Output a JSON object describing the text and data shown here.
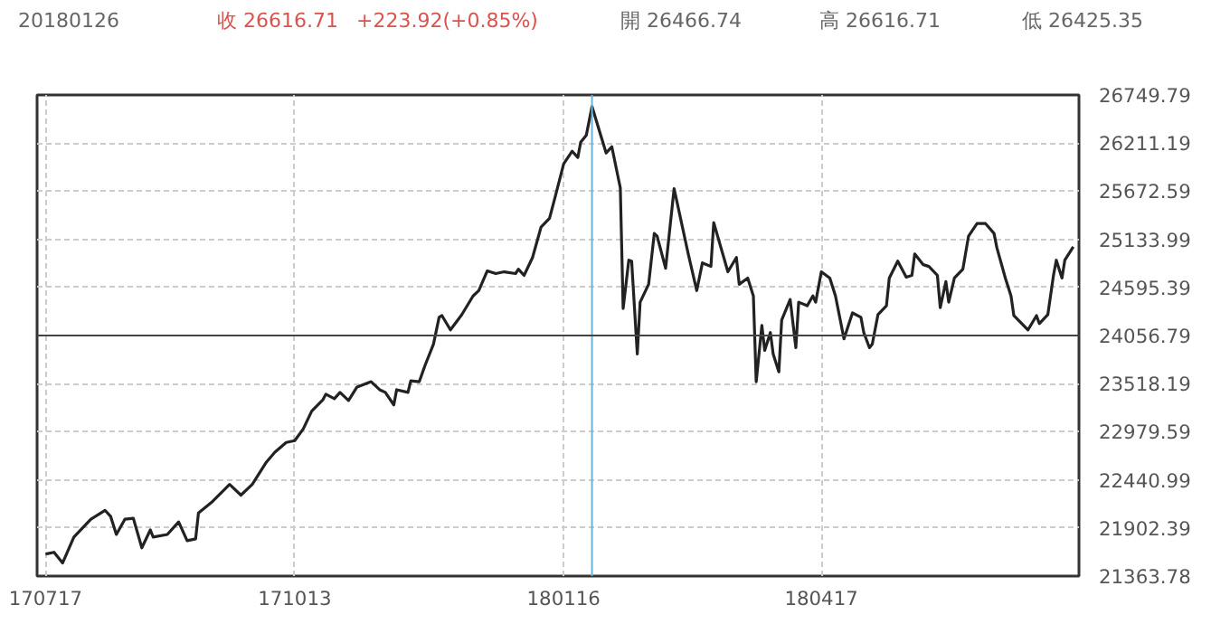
{
  "chart_data": {
    "type": "line",
    "annotations": [
      "20180126",
      "收 26616.71",
      "+223.92(+0.85%)",
      "開 26466.74",
      "高 26616.71",
      "低 26425.35"
    ],
    "series": [
      {
        "color": "#222222",
        "x": [
          "2017-07-17",
          "2017-07-20",
          "2017-07-23",
          "2017-07-27",
          "2017-08-02",
          "2017-08-07",
          "2017-08-09",
          "2017-08-11",
          "2017-08-14",
          "2017-08-17",
          "2017-08-20",
          "2017-08-23",
          "2017-08-24",
          "2017-08-29",
          "2017-09-02",
          "2017-09-05",
          "2017-09-08",
          "2017-09-09",
          "2017-09-14",
          "2017-09-20",
          "2017-09-24",
          "2017-09-28",
          "2017-10-03",
          "2017-10-06",
          "2017-10-10",
          "2017-10-13",
          "2017-10-16",
          "2017-10-19",
          "2017-10-23",
          "2017-10-24",
          "2017-10-27",
          "2017-10-29",
          "2017-11-01",
          "2017-11-04",
          "2017-11-09",
          "2017-11-12",
          "2017-11-14",
          "2017-11-17",
          "2017-11-18",
          "2017-11-22",
          "2017-11-23",
          "2017-11-26",
          "2017-11-28",
          "2017-12-01",
          "2017-12-03",
          "2017-12-04",
          "2017-12-07",
          "2017-12-11",
          "2017-12-15",
          "2017-12-17",
          "2017-12-20",
          "2017-12-23",
          "2017-12-26",
          "2017-12-30",
          "2017-12-31",
          "2018-01-02",
          "2018-01-05",
          "2018-01-08",
          "2018-01-11",
          "2018-01-13",
          "2018-01-16",
          "2018-01-19",
          "2018-01-21",
          "2018-01-22",
          "2018-01-24",
          "2018-01-26",
          "2018-01-31",
          "2018-02-02",
          "2018-02-05",
          "2018-02-06",
          "2018-02-08",
          "2018-02-09",
          "2018-02-11",
          "2018-02-12",
          "2018-02-15",
          "2018-02-17",
          "2018-02-18",
          "2018-02-21",
          "2018-02-24",
          "2018-03-01",
          "2018-03-04",
          "2018-03-06",
          "2018-03-09",
          "2018-03-10",
          "2018-03-15",
          "2018-03-18",
          "2018-03-19",
          "2018-03-22",
          "2018-03-24",
          "2018-03-25",
          "2018-03-27",
          "2018-03-28",
          "2018-03-30",
          "2018-03-31",
          "2018-04-02",
          "2018-04-03",
          "2018-04-06",
          "2018-04-08",
          "2018-04-09",
          "2018-04-12",
          "2018-04-14",
          "2018-04-15",
          "2018-04-17",
          "2018-04-20",
          "2018-04-22",
          "2018-04-25",
          "2018-04-28",
          "2018-05-01",
          "2018-05-02",
          "2018-05-04",
          "2018-05-05",
          "2018-05-07",
          "2018-05-10",
          "2018-05-11",
          "2018-05-14",
          "2018-05-17",
          "2018-05-19",
          "2018-05-20",
          "2018-05-23",
          "2018-05-25",
          "2018-05-28",
          "2018-05-29",
          "2018-05-31",
          "2018-06-01",
          "2018-06-03",
          "2018-06-06",
          "2018-06-08",
          "2018-06-11",
          "2018-06-14",
          "2018-06-17",
          "2018-06-18",
          "2018-06-21",
          "2018-06-23",
          "2018-06-24",
          "2018-06-29",
          "2018-07-02",
          "2018-07-03",
          "2018-07-06",
          "2018-07-08",
          "2018-07-09",
          "2018-07-11",
          "2018-07-12",
          "2018-07-15"
        ],
        "values": [
          21610,
          21630,
          21510,
          21800,
          22000,
          22100,
          22030,
          21830,
          22000,
          22010,
          21680,
          21880,
          21800,
          21830,
          21970,
          21760,
          21780,
          22070,
          22200,
          22390,
          22270,
          22390,
          22640,
          22750,
          22860,
          22880,
          23010,
          23210,
          23340,
          23400,
          23350,
          23420,
          23330,
          23480,
          23540,
          23450,
          23420,
          23280,
          23450,
          23420,
          23550,
          23540,
          23720,
          23960,
          24260,
          24280,
          24120,
          24290,
          24500,
          24560,
          24780,
          24750,
          24770,
          24750,
          24800,
          24730,
          24930,
          25270,
          25370,
          25610,
          25980,
          26120,
          26050,
          26220,
          26300,
          26620,
          26100,
          26170,
          25710,
          24360,
          24900,
          24890,
          23850,
          24430,
          24630,
          25200,
          25170,
          24810,
          25700,
          24970,
          24560,
          24870,
          24830,
          25320,
          24770,
          24930,
          24630,
          24700,
          24500,
          23540,
          24170,
          23890,
          24090,
          23850,
          23650,
          24230,
          24460,
          23920,
          24430,
          24390,
          24500,
          24430,
          24770,
          24700,
          24500,
          24020,
          24310,
          24260,
          24090,
          23920,
          23960,
          24290,
          24390,
          24700,
          24890,
          24710,
          24730,
          24970,
          24850,
          24830,
          24730,
          24370,
          24660,
          24430,
          24700,
          24800,
          25170,
          25310,
          25310,
          25200,
          25040,
          24700,
          24500,
          24280,
          24120,
          24280,
          24190,
          24290,
          24730,
          24900,
          24700,
          24900,
          25050
        ]
      }
    ],
    "xlim": [
      "2017-07-14",
      "2018-07-17"
    ],
    "xticks": [
      {
        "value": "2017-07-17",
        "label": "170717"
      },
      {
        "value": "2017-10-13",
        "label": "171013"
      },
      {
        "value": "2018-01-16",
        "label": "180116"
      },
      {
        "value": "2018-04-17",
        "label": "180417"
      }
    ],
    "ylim": [
      21363.78,
      26749.79
    ],
    "yticks": [
      21363.78,
      21902.39,
      22440.99,
      22979.59,
      23518.19,
      24056.79,
      24595.39,
      25133.99,
      25672.59,
      26211.19,
      26749.79
    ],
    "ref_lines": [
      {
        "axis": "x",
        "value": "2018-01-26",
        "color": "#6ab4dc"
      },
      {
        "axis": "y",
        "value": 24056.79,
        "color": "#444444"
      }
    ],
    "grid": true,
    "marker": "none",
    "line_style": "solid"
  }
}
